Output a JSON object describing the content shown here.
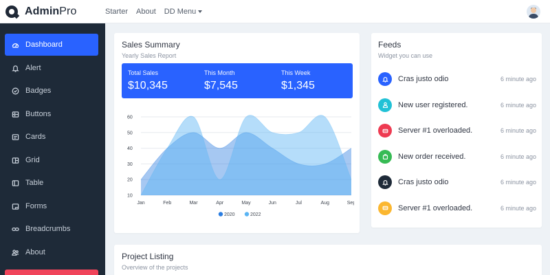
{
  "brand": {
    "bold": "Admin",
    "rest": "Pro"
  },
  "nav": {
    "starter": "Starter",
    "about": "About",
    "dd_menu": "DD Menu"
  },
  "sidebar": {
    "items": [
      {
        "label": "Dashboard",
        "icon": "dashboard-icon"
      },
      {
        "label": "Alert",
        "icon": "bell-icon"
      },
      {
        "label": "Badges",
        "icon": "badge-check-icon"
      },
      {
        "label": "Buttons",
        "icon": "buttons-icon"
      },
      {
        "label": "Cards",
        "icon": "card-icon"
      },
      {
        "label": "Grid",
        "icon": "grid-icon"
      },
      {
        "label": "Table",
        "icon": "table-icon"
      },
      {
        "label": "Forms",
        "icon": "forms-icon"
      },
      {
        "label": "Breadcrumbs",
        "icon": "link-icon"
      },
      {
        "label": "About",
        "icon": "people-icon"
      }
    ]
  },
  "sales": {
    "title": "Sales Summary",
    "subtitle": "Yearly Sales Report",
    "stats": [
      {
        "label": "Total Sales",
        "value": "$10,345"
      },
      {
        "label": "This Month",
        "value": "$7,545"
      },
      {
        "label": "This Week",
        "value": "$1,345"
      }
    ]
  },
  "chart_data": {
    "type": "area",
    "categories": [
      "Jan",
      "Feb",
      "Mar",
      "Apr",
      "May",
      "Jun",
      "Jul",
      "Aug",
      "Sep"
    ],
    "series": [
      {
        "name": "2020",
        "values": [
          20,
          40,
          50,
          40,
          50,
          40,
          30,
          30,
          40
        ],
        "color": "#2a7de1"
      },
      {
        "name": "2022",
        "values": [
          10,
          40,
          60,
          20,
          60,
          50,
          50,
          60,
          20
        ],
        "color": "#5ab4f3"
      }
    ],
    "ylim": [
      10,
      60
    ],
    "yticks": [
      10,
      20,
      30,
      40,
      50,
      60
    ],
    "grid": true,
    "legend": "bottom"
  },
  "feeds": {
    "title": "Feeds",
    "subtitle": "Widget you can use",
    "items": [
      {
        "text": "Cras justo odio",
        "time": "6 minute ago",
        "color": "#2962ff",
        "icon": "bell-icon"
      },
      {
        "text": "New user registered.",
        "time": "6 minute ago",
        "color": "#21c1d6",
        "icon": "user-icon"
      },
      {
        "text": "Server #1 overloaded.",
        "time": "6 minute ago",
        "color": "#ee3b52",
        "icon": "server-icon"
      },
      {
        "text": "New order received.",
        "time": "6 minute ago",
        "color": "#36bb54",
        "icon": "bag-icon"
      },
      {
        "text": "Cras justo odio",
        "time": "6 minute ago",
        "color": "#1e2a38",
        "icon": "bell-icon"
      },
      {
        "text": "Server #1 overloaded.",
        "time": "6 minute ago",
        "color": "#fbb730",
        "icon": "server-icon"
      }
    ]
  },
  "projects": {
    "title": "Project Listing",
    "subtitle": "Overview of the projects"
  },
  "colors": {
    "accent": "#2962ff",
    "sidebar": "#1e2a38",
    "danger": "#f0445a"
  }
}
